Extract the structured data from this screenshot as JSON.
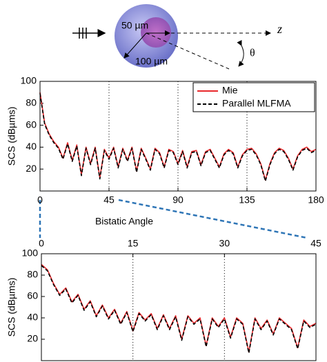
{
  "diagram": {
    "inner_label": "50 µm",
    "outer_label": "100 µm",
    "axis_label": "z",
    "angle_label": "θ"
  },
  "chart_data": [
    {
      "type": "line",
      "xlabel": "Bistatic Angle",
      "ylabel": "SCS (dBµms)",
      "xlim": [
        0,
        180
      ],
      "xticks": [
        0,
        45,
        90,
        135,
        180
      ],
      "ylim": [
        0,
        100
      ],
      "yticks": [
        20,
        40,
        60,
        80,
        100
      ],
      "grid": true,
      "legend": "upper right",
      "x": [
        0,
        3,
        6,
        9,
        12,
        15,
        18,
        21,
        24,
        27,
        30,
        33,
        36,
        39,
        42,
        45,
        48,
        51,
        54,
        57,
        60,
        63,
        66,
        69,
        72,
        75,
        78,
        81,
        84,
        87,
        90,
        93,
        96,
        99,
        102,
        105,
        108,
        111,
        114,
        117,
        120,
        123,
        126,
        129,
        132,
        135,
        138,
        141,
        144,
        147,
        150,
        153,
        156,
        159,
        162,
        165,
        168,
        171,
        174,
        177,
        180
      ],
      "series": [
        {
          "name": "Mie",
          "color": "#e8282b",
          "dash": false,
          "values": [
            90,
            62,
            52,
            45,
            40,
            30,
            44,
            28,
            42,
            15,
            40,
            25,
            40,
            12,
            38,
            30,
            40,
            22,
            39,
            28,
            40,
            18,
            39,
            30,
            20,
            39,
            35,
            22,
            38,
            36,
            25,
            37,
            22,
            36,
            37,
            24,
            36,
            38,
            30,
            22,
            34,
            38,
            35,
            22,
            33,
            38,
            39,
            34,
            25,
            10,
            25,
            35,
            39,
            37,
            30,
            20,
            32,
            38,
            40,
            36,
            38
          ]
        },
        {
          "name": "Parallel MLFMA",
          "color": "#000000",
          "dash": true,
          "values": [
            89,
            61,
            51,
            44,
            39,
            29,
            43,
            27,
            41,
            14,
            39,
            24,
            39,
            11,
            37,
            29,
            39,
            21,
            38,
            27,
            39,
            17,
            38,
            29,
            19,
            38,
            34,
            21,
            37,
            35,
            24,
            36,
            21,
            35,
            36,
            23,
            35,
            37,
            29,
            21,
            33,
            37,
            34,
            21,
            32,
            37,
            38,
            33,
            24,
            9,
            24,
            34,
            38,
            36,
            29,
            19,
            31,
            37,
            39,
            35,
            37
          ]
        }
      ]
    },
    {
      "type": "line",
      "ylabel": "SCS (dBµms)",
      "xlim": [
        0,
        45
      ],
      "xticks": [
        0,
        15,
        30,
        45
      ],
      "ylim": [
        0,
        100
      ],
      "yticks": [
        20,
        40,
        60,
        80,
        100
      ],
      "grid": true,
      "x": [
        0,
        1,
        2,
        3,
        4,
        5,
        6,
        7,
        8,
        9,
        10,
        11,
        12,
        13,
        14,
        15,
        16,
        17,
        18,
        19,
        20,
        21,
        22,
        23,
        24,
        25,
        26,
        27,
        28,
        29,
        30,
        31,
        32,
        33,
        34,
        35,
        36,
        37,
        38,
        39,
        40,
        41,
        42,
        43,
        44,
        45
      ],
      "series": [
        {
          "name": "Mie",
          "color": "#e8282b",
          "dash": false,
          "values": [
            90,
            85,
            72,
            62,
            68,
            55,
            62,
            48,
            56,
            42,
            52,
            40,
            48,
            35,
            46,
            28,
            45,
            38,
            44,
            30,
            43,
            30,
            42,
            20,
            42,
            35,
            40,
            14,
            40,
            32,
            40,
            22,
            40,
            35,
            8,
            40,
            30,
            38,
            25,
            40,
            35,
            30,
            12,
            38,
            32,
            35
          ]
        },
        {
          "name": "Parallel MLFMA",
          "color": "#000000",
          "dash": true,
          "values": [
            89,
            84,
            71,
            61,
            67,
            54,
            61,
            47,
            55,
            41,
            51,
            39,
            47,
            34,
            45,
            27,
            44,
            37,
            43,
            29,
            42,
            29,
            41,
            19,
            41,
            34,
            39,
            13,
            39,
            31,
            39,
            21,
            39,
            34,
            7,
            39,
            29,
            37,
            24,
            39,
            34,
            29,
            11,
            37,
            31,
            34
          ]
        }
      ]
    }
  ]
}
